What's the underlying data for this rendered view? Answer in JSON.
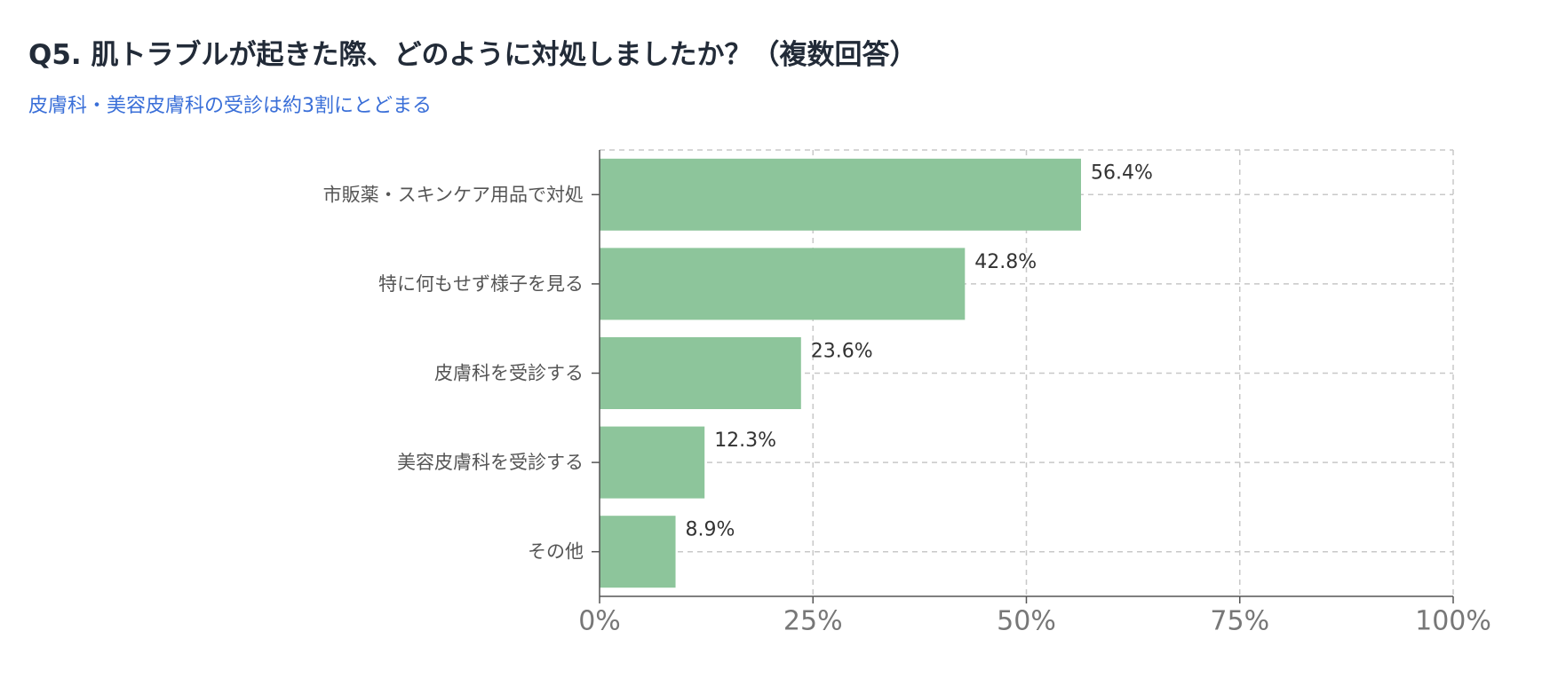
{
  "title": "Q5. 肌トラブルが起きた際、どのように対処しましたか？（複数回答）",
  "subtitle": "皮膚科・美容皮膚科の受診は約3割にとどまる",
  "colors": {
    "bar": "#8dc59b",
    "title": "#222b38",
    "subtitle": "#3a6fd8",
    "axis": "#555555",
    "grid": "#c8c8c8",
    "category_text": "#555555",
    "tick_text": "#777777",
    "value_text": "#333333"
  },
  "chart_data": {
    "type": "bar",
    "orientation": "horizontal",
    "categories": [
      "市販薬・スキンケア用品で対処",
      "特に何もせず様子を見る",
      "皮膚科を受診する",
      "美容皮膚科を受診する",
      "その他"
    ],
    "values": [
      56.4,
      42.8,
      23.6,
      12.3,
      8.9
    ],
    "value_labels": [
      "56.4%",
      "42.8%",
      "23.6%",
      "12.3%",
      "8.9%"
    ],
    "xlim": [
      0,
      100
    ],
    "xticks": [
      0,
      25,
      50,
      75,
      100
    ],
    "xtick_labels": [
      "0%",
      "25%",
      "50%",
      "75%",
      "100%"
    ],
    "grid": true,
    "grid_style": "dashed",
    "legend": "none"
  }
}
